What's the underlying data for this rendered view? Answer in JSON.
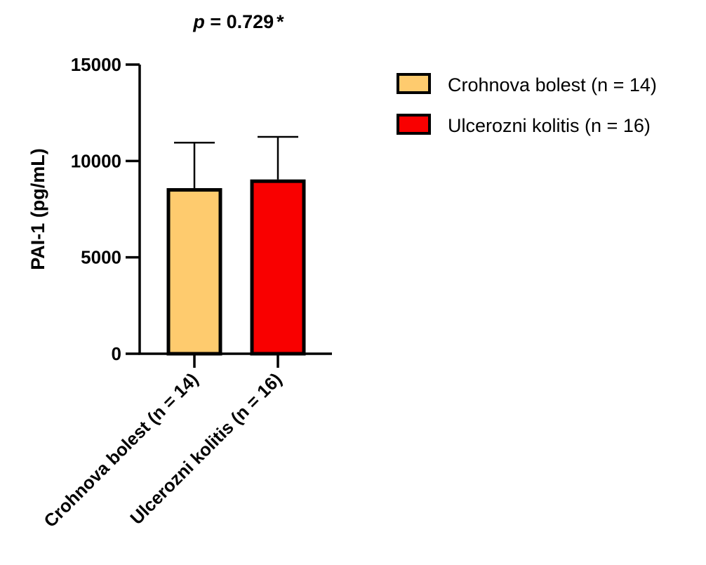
{
  "chart_data": {
    "type": "bar",
    "title_prefix": "p",
    "title_value": " = 0.729",
    "title_mark": "*",
    "ylabel": "PAI-1 (pg/mL)",
    "ylim": [
      0,
      15000
    ],
    "yticks": [
      0,
      5000,
      10000,
      15000
    ],
    "categories": [
      "Crohnova bolest (n = 14)",
      "Ulcerozni kolitis (n = 16)"
    ],
    "values": [
      8500,
      8950
    ],
    "error_upper": [
      2450,
      2300
    ],
    "colors": [
      "#FECB6E",
      "#F90000"
    ],
    "edge_color": "#000000",
    "legend": {
      "position": "right",
      "entries": [
        {
          "label": "Crohnova bolest (n = 14)",
          "color": "#FECB6E"
        },
        {
          "label": "Ulcerozni kolitis (n = 16)",
          "color": "#F90000"
        }
      ]
    },
    "grid": false
  }
}
